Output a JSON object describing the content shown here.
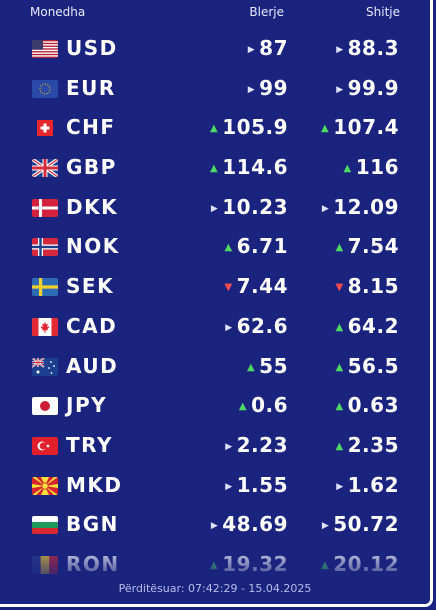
{
  "header": {
    "currency": "Monedha",
    "buy": "Blerje",
    "sell": "Shitje"
  },
  "rows": [
    {
      "code": "USD",
      "flag": "usa-flag-icon",
      "buy": "87",
      "buy_trend": "same",
      "sell": "88.3",
      "sell_trend": "same"
    },
    {
      "code": "EUR",
      "flag": "eu-flag-icon",
      "buy": "99",
      "buy_trend": "same",
      "sell": "99.9",
      "sell_trend": "same"
    },
    {
      "code": "CHF",
      "flag": "switzerland-flag-icon",
      "buy": "105.9",
      "buy_trend": "up",
      "sell": "107.4",
      "sell_trend": "up"
    },
    {
      "code": "GBP",
      "flag": "uk-flag-icon",
      "buy": "114.6",
      "buy_trend": "up",
      "sell": "116",
      "sell_trend": "up"
    },
    {
      "code": "DKK",
      "flag": "denmark-flag-icon",
      "buy": "10.23",
      "buy_trend": "same",
      "sell": "12.09",
      "sell_trend": "same"
    },
    {
      "code": "NOK",
      "flag": "norway-flag-icon",
      "buy": "6.71",
      "buy_trend": "up",
      "sell": "7.54",
      "sell_trend": "up"
    },
    {
      "code": "SEK",
      "flag": "sweden-flag-icon",
      "buy": "7.44",
      "buy_trend": "down",
      "sell": "8.15",
      "sell_trend": "down"
    },
    {
      "code": "CAD",
      "flag": "canada-flag-icon",
      "buy": "62.6",
      "buy_trend": "same",
      "sell": "64.2",
      "sell_trend": "up"
    },
    {
      "code": "AUD",
      "flag": "australia-flag-icon",
      "buy": "55",
      "buy_trend": "up",
      "sell": "56.5",
      "sell_trend": "up"
    },
    {
      "code": "JPY",
      "flag": "japan-flag-icon",
      "buy": "0.6",
      "buy_trend": "up",
      "sell": "0.63",
      "sell_trend": "up"
    },
    {
      "code": "TRY",
      "flag": "turkey-flag-icon",
      "buy": "2.23",
      "buy_trend": "same",
      "sell": "2.35",
      "sell_trend": "up"
    },
    {
      "code": "MKD",
      "flag": "north-macedonia-flag-icon",
      "buy": "1.55",
      "buy_trend": "same",
      "sell": "1.62",
      "sell_trend": "same"
    },
    {
      "code": "BGN",
      "flag": "bulgaria-flag-icon",
      "buy": "48.69",
      "buy_trend": "same",
      "sell": "50.72",
      "sell_trend": "same"
    },
    {
      "code": "RON",
      "flag": "romania-flag-icon",
      "buy": "19.32",
      "buy_trend": "up",
      "sell": "20.12",
      "sell_trend": "up"
    }
  ],
  "footer": {
    "updated": "Përditësuar: 07:42:29 - 15.04.2025"
  },
  "colors": {
    "background": "#1a237e",
    "up": "#4cd964",
    "down": "#ff4d4f"
  }
}
